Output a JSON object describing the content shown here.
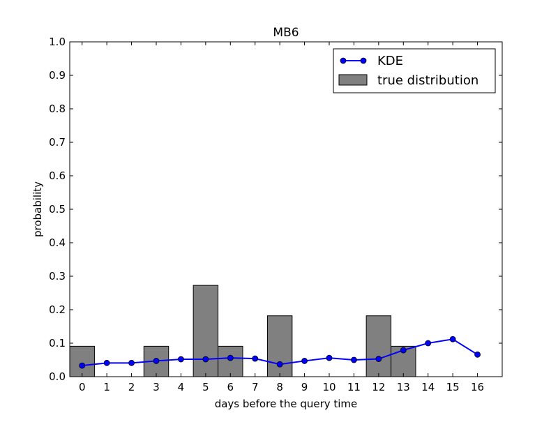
{
  "chart_data": {
    "type": "bar",
    "title": "MB6",
    "xlabel": "days before the query time",
    "ylabel": "probability",
    "xlim": [
      -0.5,
      17
    ],
    "ylim": [
      0,
      1.0
    ],
    "x_ticks": [
      0,
      1,
      2,
      3,
      4,
      5,
      6,
      7,
      8,
      9,
      10,
      11,
      12,
      13,
      14,
      15,
      16
    ],
    "y_ticks": [
      "0.0",
      "0.1",
      "0.2",
      "0.3",
      "0.4",
      "0.5",
      "0.6",
      "0.7",
      "0.8",
      "0.9",
      "1.0"
    ],
    "grid": false,
    "legend_position": "top-right",
    "series": [
      {
        "name": "KDE",
        "kind": "line",
        "color": "#0000ff",
        "x": [
          0,
          1,
          2,
          3,
          4,
          5,
          6,
          7,
          8,
          9,
          10,
          11,
          12,
          13,
          14,
          15,
          16
        ],
        "values": [
          0.033,
          0.041,
          0.041,
          0.047,
          0.052,
          0.052,
          0.056,
          0.054,
          0.037,
          0.047,
          0.056,
          0.05,
          0.053,
          0.079,
          0.1,
          0.112,
          0.066
        ]
      },
      {
        "name": "true distribution",
        "kind": "bar",
        "color": "#808080",
        "x": [
          0,
          1,
          2,
          3,
          4,
          5,
          6,
          7,
          8,
          9,
          10,
          11,
          12,
          13,
          14,
          15
        ],
        "values": [
          0.0909,
          0,
          0,
          0.0909,
          0,
          0.2727,
          0.0909,
          0,
          0.1818,
          0,
          0,
          0,
          0.1818,
          0.0909,
          0,
          0
        ]
      }
    ]
  }
}
